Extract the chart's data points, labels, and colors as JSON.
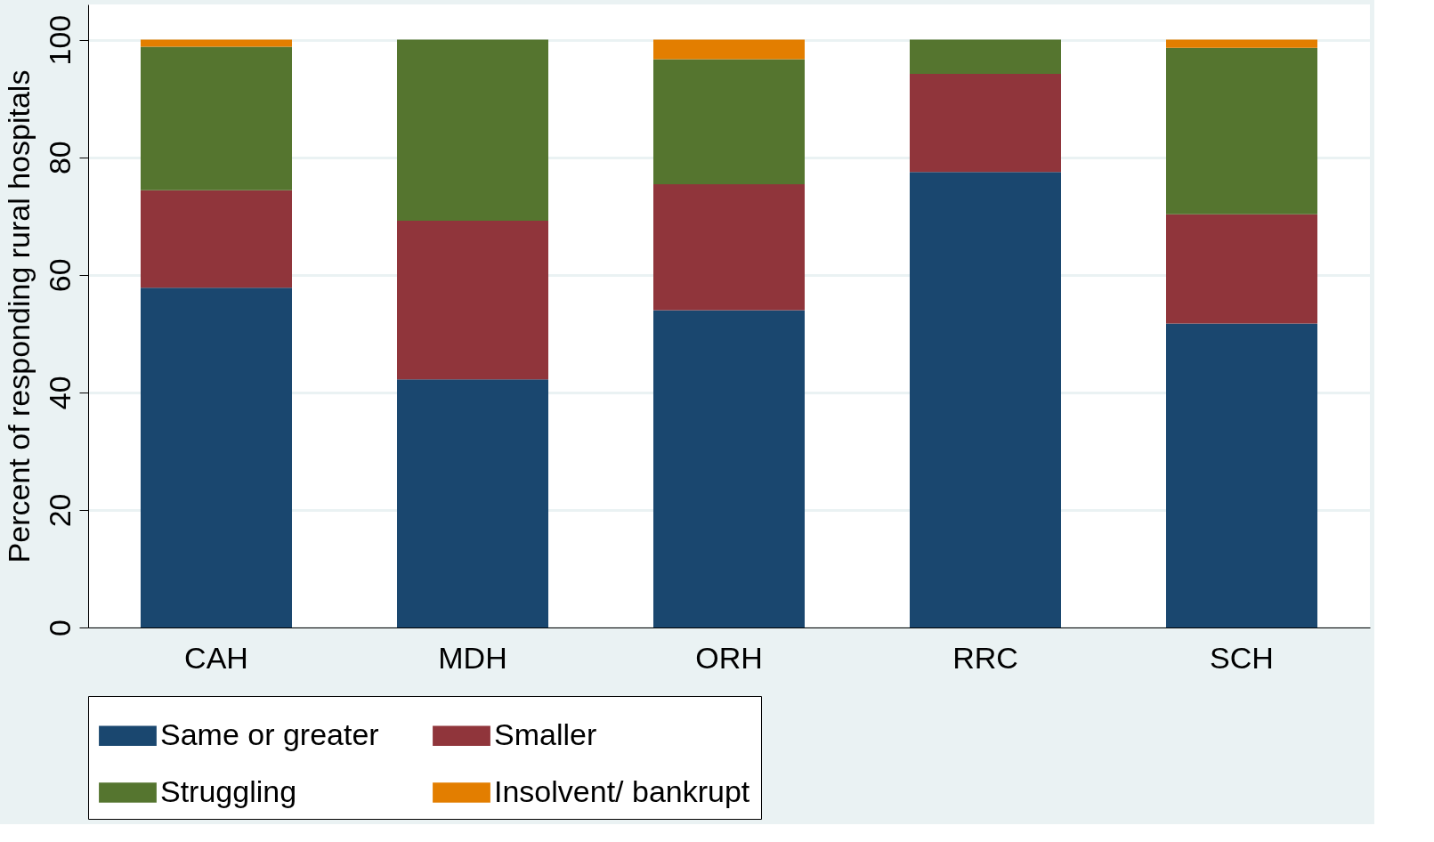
{
  "chart_data": {
    "type": "bar",
    "stacked": true,
    "ylabel": "Percent of responding rural hospitals",
    "categories": [
      "CAH",
      "MDH",
      "ORH",
      "RRC",
      "SCH"
    ],
    "series": [
      {
        "name": "Same or greater",
        "color": "#1a476f",
        "values": [
          57.8,
          42.2,
          54.0,
          77.5,
          51.7
        ]
      },
      {
        "name": "Smaller",
        "color": "#90353b",
        "values": [
          16.6,
          27.0,
          21.4,
          16.7,
          18.6
        ]
      },
      {
        "name": "Struggling",
        "color": "#55752f",
        "values": [
          24.4,
          30.8,
          21.3,
          5.8,
          28.3
        ]
      },
      {
        "name": "Insolvent/ bankrupt",
        "color": "#e37e00",
        "values": [
          1.2,
          0,
          3.3,
          0,
          1.4
        ]
      }
    ],
    "ylim": [
      0,
      106
    ],
    "yticks": [
      0,
      20,
      40,
      60,
      80,
      100
    ],
    "grid": "y",
    "legend": "bottom"
  }
}
